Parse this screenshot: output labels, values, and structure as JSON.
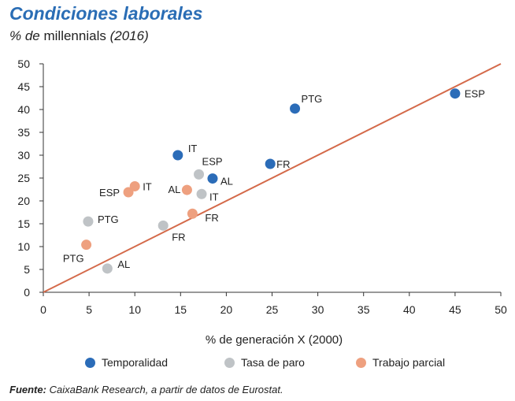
{
  "title": "Condiciones laborales",
  "subtitle_prefix": "% de",
  "subtitle_main": "millennials",
  "subtitle_year": "(2016)",
  "source_label": "Fuente:",
  "source_text": "CaixaBank Research, a partir de datos de Eurostat.",
  "colors": {
    "temporalidad": "#2b6cb8",
    "tasa_de_paro": "#bfc3c6",
    "trabajo_parcial": "#eea07f",
    "diagonal": "#d46a4a",
    "title": "#2a6db5"
  },
  "chart_data": {
    "type": "scatter",
    "xlabel": "% de generación X (2000)",
    "ylabel": "",
    "xlim": [
      0,
      50
    ],
    "ylim": [
      0,
      50
    ],
    "xticks": [
      0,
      5,
      10,
      15,
      20,
      25,
      30,
      35,
      40,
      45,
      50
    ],
    "yticks": [
      0,
      5,
      10,
      15,
      20,
      25,
      30,
      35,
      40,
      45,
      50
    ],
    "grid": false,
    "legend_position": "bottom",
    "reference_line": {
      "from": [
        0,
        0
      ],
      "to": [
        50,
        50
      ]
    },
    "series": [
      {
        "name": "Temporalidad",
        "color": "#2b6cb8",
        "points": [
          {
            "label": "ESP",
            "x": 45.0,
            "y": 43.5
          },
          {
            "label": "PTG",
            "x": 27.5,
            "y": 40.2
          },
          {
            "label": "IT",
            "x": 14.7,
            "y": 30.0
          },
          {
            "label": "FR",
            "x": 24.8,
            "y": 28.1
          },
          {
            "label": "AL",
            "x": 18.5,
            "y": 24.9
          }
        ]
      },
      {
        "name": "Tasa de paro",
        "color": "#bfc3c6",
        "points": [
          {
            "label": "ESP",
            "x": 17.0,
            "y": 25.8
          },
          {
            "label": "IT",
            "x": 17.3,
            "y": 21.5
          },
          {
            "label": "PTG",
            "x": 4.9,
            "y": 15.5
          },
          {
            "label": "FR",
            "x": 13.1,
            "y": 14.6
          },
          {
            "label": "AL",
            "x": 7.0,
            "y": 5.2
          }
        ]
      },
      {
        "name": "Trabajo parcial",
        "color": "#eea07f",
        "points": [
          {
            "label": "IT",
            "x": 10.0,
            "y": 23.2
          },
          {
            "label": "ESP",
            "x": 9.3,
            "y": 21.9
          },
          {
            "label": "AL",
            "x": 15.7,
            "y": 22.4
          },
          {
            "label": "FR",
            "x": 16.3,
            "y": 17.2
          },
          {
            "label": "PTG",
            "x": 4.7,
            "y": 10.4
          }
        ]
      }
    ]
  }
}
